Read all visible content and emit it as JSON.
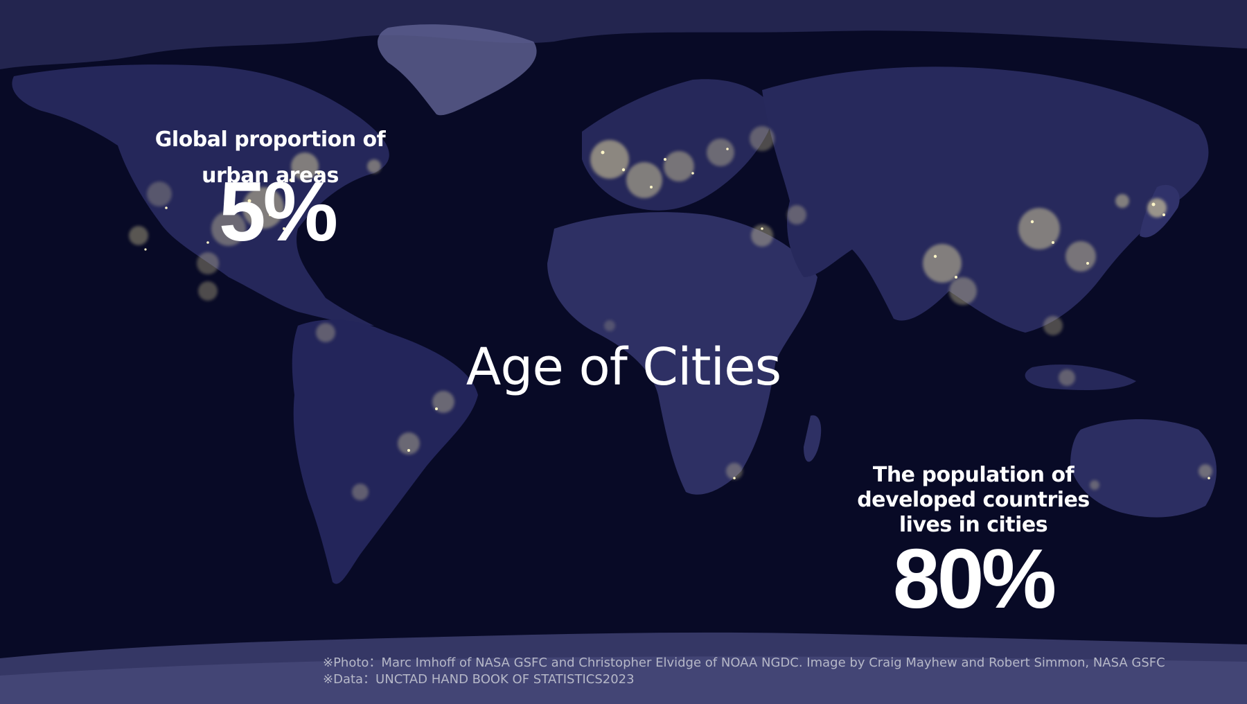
{
  "title": "Age of Cities",
  "stats": {
    "urban_label": "Global proportion of urban areas",
    "urban_value": "5%",
    "population_label": "The population of developed countries lives in cities",
    "population_value": "80%"
  },
  "credits": {
    "photo": "※Photo：Marc Imhoff of NASA GSFC and Christopher Elvidge of NOAA NGDC. Image by Craig Mayhew and Robert Simmon, NASA GSFC",
    "data": "※Data：UNCTAD HAND BOOK OF STATISTICS2023"
  },
  "colors": {
    "ocean": "#080a26",
    "land": "#2a2c5a",
    "city_lights": "#f2e6a6",
    "ice": "#6e70a0",
    "text": "#ffffff"
  }
}
